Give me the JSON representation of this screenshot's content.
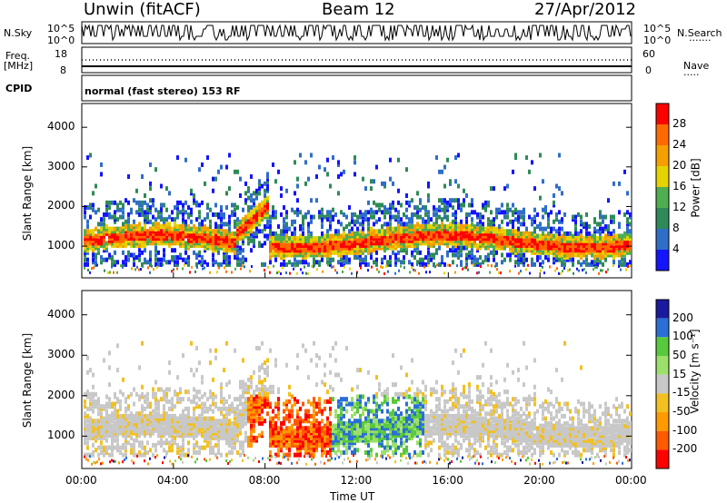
{
  "header": {
    "station": "Unwin (fitACF)",
    "beam": "Beam 12",
    "date": "27/Apr/2012"
  },
  "summary": {
    "nsky_label": "N.Sky",
    "nsearch_label": "N.Search",
    "freq_label": "Freq.",
    "freq_unit": "[MHz]",
    "nave_label": "Nave",
    "cpid_label": "CPID",
    "cpid_text": "normal (fast stereo) 153 RF",
    "noise_ticks": [
      "10^5",
      "10^0"
    ],
    "noise_ticks_right": [
      "10^5",
      "10^0"
    ],
    "freq_ticks": [
      "18",
      "8"
    ],
    "nave_ticks": [
      "60",
      "0"
    ]
  },
  "colors": {
    "power": [
      "#1414ff",
      "#2f6ec8",
      "#2e8b57",
      "#4fae4f",
      "#e6d200",
      "#f5a000",
      "#ff6a00",
      "#ff0000"
    ],
    "velocity": [
      "#1a1aa0",
      "#2a6fd6",
      "#58c83c",
      "#9be06a",
      "#c8c8c8",
      "#f2c020",
      "#ff9a00",
      "#ff5a00",
      "#ff0000"
    ]
  },
  "chart_data": [
    {
      "type": "heatmap",
      "title": "",
      "xlabel": "",
      "ylabel": "Slant Range [km]",
      "x_ticks": [
        "00:00",
        "04:00",
        "08:00",
        "12:00",
        "16:00",
        "20:00",
        "00:00"
      ],
      "y_ticks": [
        1000,
        2000,
        3000,
        4000
      ],
      "ylim": [
        200,
        4600
      ],
      "colorbar": {
        "label": "Power [dB]",
        "ticks": [
          4,
          8,
          12,
          16,
          20,
          24,
          28
        ]
      }
    },
    {
      "type": "heatmap",
      "title": "",
      "xlabel": "Time UT",
      "ylabel": "Slant Range [km]",
      "x_ticks": [
        "00:00",
        "04:00",
        "08:00",
        "12:00",
        "16:00",
        "20:00",
        "00:00"
      ],
      "y_ticks": [
        1000,
        2000,
        3000,
        4000
      ],
      "ylim": [
        200,
        4600
      ],
      "colorbar": {
        "label": "Velocity [m s⁻¹]",
        "ticks": [
          200,
          100,
          50,
          15,
          -15,
          -50,
          -100,
          -200
        ]
      }
    }
  ]
}
